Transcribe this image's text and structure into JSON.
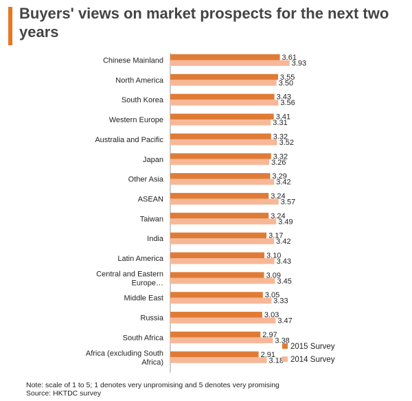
{
  "title": "Buyers' views on market prospects for the next two years",
  "colors": {
    "accent": "#E87722",
    "series2015": "#E07B36",
    "series2014": "#F7B898",
    "axis": "#999999",
    "title": "#444444"
  },
  "chart_data": {
    "type": "bar",
    "orientation": "horizontal",
    "categories": [
      "Chinese Mainland",
      "North America",
      "South Korea",
      "Western Europe",
      "Australia and Pacific",
      "Japan",
      "Other Asia",
      "ASEAN",
      "Taiwan",
      "India",
      "Latin America",
      "Central and Eastern Europe…",
      "Middle East",
      "Russia",
      "South Africa",
      "Africa (excluding South Africa)"
    ],
    "category_lines": [
      [
        "Chinese Mainland"
      ],
      [
        "North America"
      ],
      [
        "South Korea"
      ],
      [
        "Western Europe"
      ],
      [
        "Australia and Pacific"
      ],
      [
        "Japan"
      ],
      [
        "Other Asia"
      ],
      [
        "ASEAN"
      ],
      [
        "Taiwan"
      ],
      [
        "India"
      ],
      [
        "Latin America"
      ],
      [
        "Central and Eastern",
        "Europe…"
      ],
      [
        "Middle East"
      ],
      [
        "Russia"
      ],
      [
        "South Africa"
      ],
      [
        "Africa (excluding South",
        "Africa)"
      ]
    ],
    "series": [
      {
        "name": "2015 Survey",
        "values": [
          3.61,
          3.55,
          3.43,
          3.41,
          3.32,
          3.32,
          3.29,
          3.24,
          3.24,
          3.17,
          3.1,
          3.09,
          3.05,
          3.03,
          2.97,
          2.91
        ]
      },
      {
        "name": "2014 Survey",
        "values": [
          3.93,
          3.5,
          3.56,
          3.31,
          3.52,
          3.26,
          3.42,
          3.57,
          3.49,
          3.42,
          3.43,
          3.45,
          3.33,
          3.47,
          3.38,
          3.18
        ]
      }
    ],
    "xlim": [
      0,
      4.5
    ],
    "legend_position": "bottom-right",
    "grid": false
  },
  "note": "Note: scale of 1 to 5; 1 denotes very unpromising and 5 denotes very promising",
  "source": "Source: HKTDC  survey"
}
